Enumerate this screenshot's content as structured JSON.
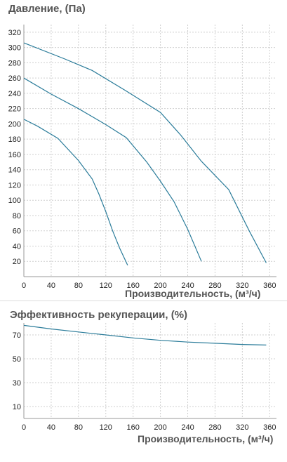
{
  "chart_data": [
    {
      "type": "line",
      "title": "Давление, (Па)",
      "xlabel": "Производительность, (м³/ч)",
      "ylabel": "",
      "xlim": [
        0,
        370
      ],
      "ylim": [
        0,
        330
      ],
      "x_ticks": [
        0,
        40,
        80,
        120,
        160,
        200,
        240,
        280,
        320,
        360
      ],
      "y_ticks": [
        20,
        40,
        60,
        80,
        100,
        120,
        140,
        160,
        180,
        200,
        220,
        240,
        260,
        280,
        300,
        320
      ],
      "grid": true,
      "series": [
        {
          "points": [
            [
              0,
              206
            ],
            [
              20,
              197
            ],
            [
              50,
              181
            ],
            [
              80,
              152
            ],
            [
              100,
              128
            ],
            [
              110,
              108
            ],
            [
              120,
              85
            ],
            [
              130,
              60
            ],
            [
              140,
              38
            ],
            [
              152,
              15
            ]
          ]
        },
        {
          "points": [
            [
              0,
              260
            ],
            [
              40,
              239
            ],
            [
              80,
              220
            ],
            [
              120,
              199
            ],
            [
              150,
              182
            ],
            [
              180,
              150
            ],
            [
              200,
              125
            ],
            [
              220,
              98
            ],
            [
              240,
              62
            ],
            [
              260,
              20
            ]
          ]
        },
        {
          "points": [
            [
              0,
              306
            ],
            [
              60,
              285
            ],
            [
              100,
              270
            ],
            [
              150,
              243
            ],
            [
              200,
              215
            ],
            [
              230,
              185
            ],
            [
              260,
              151
            ],
            [
              300,
              114
            ],
            [
              330,
              60
            ],
            [
              355,
              18
            ]
          ]
        }
      ]
    },
    {
      "type": "line",
      "title": "Эффективность рекуперации, (%)",
      "xlabel": "Производительность, (м³/ч)",
      "ylabel": "",
      "xlim": [
        0,
        370
      ],
      "ylim": [
        0,
        80
      ],
      "x_ticks": [
        0,
        40,
        80,
        120,
        160,
        200,
        240,
        280,
        320,
        360
      ],
      "y_ticks": [
        10,
        30,
        50,
        70
      ],
      "grid": true,
      "series": [
        {
          "points": [
            [
              0,
              78
            ],
            [
              40,
              75
            ],
            [
              80,
              72.5
            ],
            [
              120,
              70
            ],
            [
              160,
              67.5
            ],
            [
              200,
              65.5
            ],
            [
              240,
              64
            ],
            [
              280,
              63
            ],
            [
              320,
              62
            ],
            [
              355,
              61.5
            ]
          ]
        }
      ]
    }
  ]
}
